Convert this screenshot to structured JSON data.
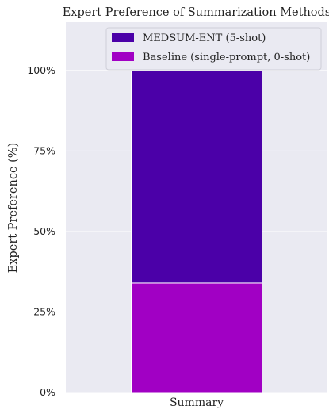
{
  "chart_data": {
    "type": "bar",
    "stacked": true,
    "title": "Expert Preference of Summarization Methods",
    "xlabel": "",
    "ylabel": "Expert Preference (%)",
    "categories": [
      "Summary"
    ],
    "ylim": [
      0,
      1.15
    ],
    "yticks": [
      0,
      0.25,
      0.5,
      0.75,
      1.0
    ],
    "ytick_labels": [
      "0%",
      "25%",
      "50%",
      "75%",
      "100%"
    ],
    "grid": true,
    "legend_position": "top",
    "series": [
      {
        "name": "Baseline (single-prompt, 0-shot)",
        "values": [
          0.34
        ],
        "color": "#a100c4"
      },
      {
        "name": "MEDSUM-ENT (5-shot)",
        "values": [
          0.66
        ],
        "color": "#4b00a8"
      }
    ],
    "legend_order": [
      1,
      0
    ],
    "background_color": "#eaeaf2"
  }
}
